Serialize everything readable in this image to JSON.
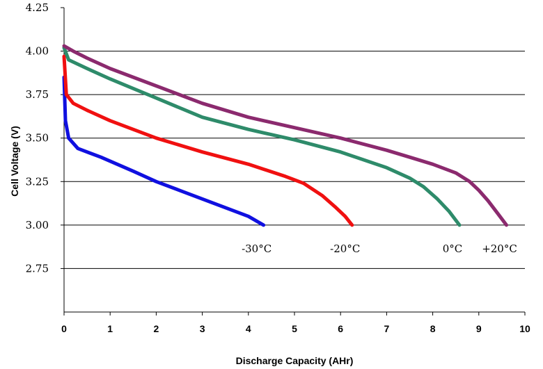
{
  "chart_data": {
    "type": "line",
    "xlabel": "Discharge Capacity (AHr)",
    "ylabel": "Cell Voltage (V)",
    "xlim": [
      0,
      10
    ],
    "ylim": [
      2.5,
      4.25
    ],
    "x_ticks": [
      "0",
      "1",
      "2",
      "3",
      "4",
      "5",
      "6",
      "7",
      "8",
      "9",
      "10"
    ],
    "y_ticks": [
      "2.75",
      "3.00",
      "3.25",
      "3.50",
      "3.75",
      "4.00",
      "4.25"
    ],
    "grid": "horizontal",
    "series": [
      {
        "name": "-30°C",
        "color": "#1010e0",
        "points": [
          [
            0.0,
            3.85
          ],
          [
            0.03,
            3.6
          ],
          [
            0.1,
            3.5
          ],
          [
            0.3,
            3.44
          ],
          [
            0.8,
            3.39
          ],
          [
            1.5,
            3.31
          ],
          [
            2.0,
            3.25
          ],
          [
            2.5,
            3.2
          ],
          [
            3.0,
            3.15
          ],
          [
            3.5,
            3.1
          ],
          [
            4.0,
            3.05
          ],
          [
            4.33,
            3.0
          ]
        ]
      },
      {
        "name": "-20°C",
        "color": "#f01010",
        "points": [
          [
            0.0,
            3.97
          ],
          [
            0.05,
            3.75
          ],
          [
            0.2,
            3.7
          ],
          [
            0.5,
            3.66
          ],
          [
            1.0,
            3.6
          ],
          [
            2.0,
            3.5
          ],
          [
            3.0,
            3.42
          ],
          [
            4.0,
            3.35
          ],
          [
            4.8,
            3.28
          ],
          [
            5.2,
            3.24
          ],
          [
            5.6,
            3.17
          ],
          [
            5.9,
            3.1
          ],
          [
            6.1,
            3.05
          ],
          [
            6.25,
            3.0
          ]
        ]
      },
      {
        "name": "0°C",
        "color": "#2e8b6a",
        "points": [
          [
            0.0,
            4.02
          ],
          [
            0.1,
            3.95
          ],
          [
            0.5,
            3.9
          ],
          [
            1.0,
            3.84
          ],
          [
            2.0,
            3.73
          ],
          [
            3.0,
            3.62
          ],
          [
            4.0,
            3.55
          ],
          [
            5.0,
            3.49
          ],
          [
            6.0,
            3.42
          ],
          [
            7.0,
            3.33
          ],
          [
            7.5,
            3.27
          ],
          [
            7.8,
            3.22
          ],
          [
            8.1,
            3.15
          ],
          [
            8.35,
            3.08
          ],
          [
            8.58,
            3.0
          ]
        ]
      },
      {
        "name": "+20°C",
        "color": "#8b2a6e",
        "points": [
          [
            0.0,
            4.03
          ],
          [
            0.2,
            4.0
          ],
          [
            0.5,
            3.96
          ],
          [
            1.0,
            3.9
          ],
          [
            2.0,
            3.8
          ],
          [
            3.0,
            3.7
          ],
          [
            4.0,
            3.62
          ],
          [
            5.0,
            3.56
          ],
          [
            6.0,
            3.5
          ],
          [
            7.0,
            3.43
          ],
          [
            7.5,
            3.39
          ],
          [
            8.0,
            3.35
          ],
          [
            8.5,
            3.3
          ],
          [
            8.8,
            3.25
          ],
          [
            9.0,
            3.2
          ],
          [
            9.2,
            3.14
          ],
          [
            9.4,
            3.07
          ],
          [
            9.6,
            3.0
          ]
        ]
      }
    ]
  }
}
